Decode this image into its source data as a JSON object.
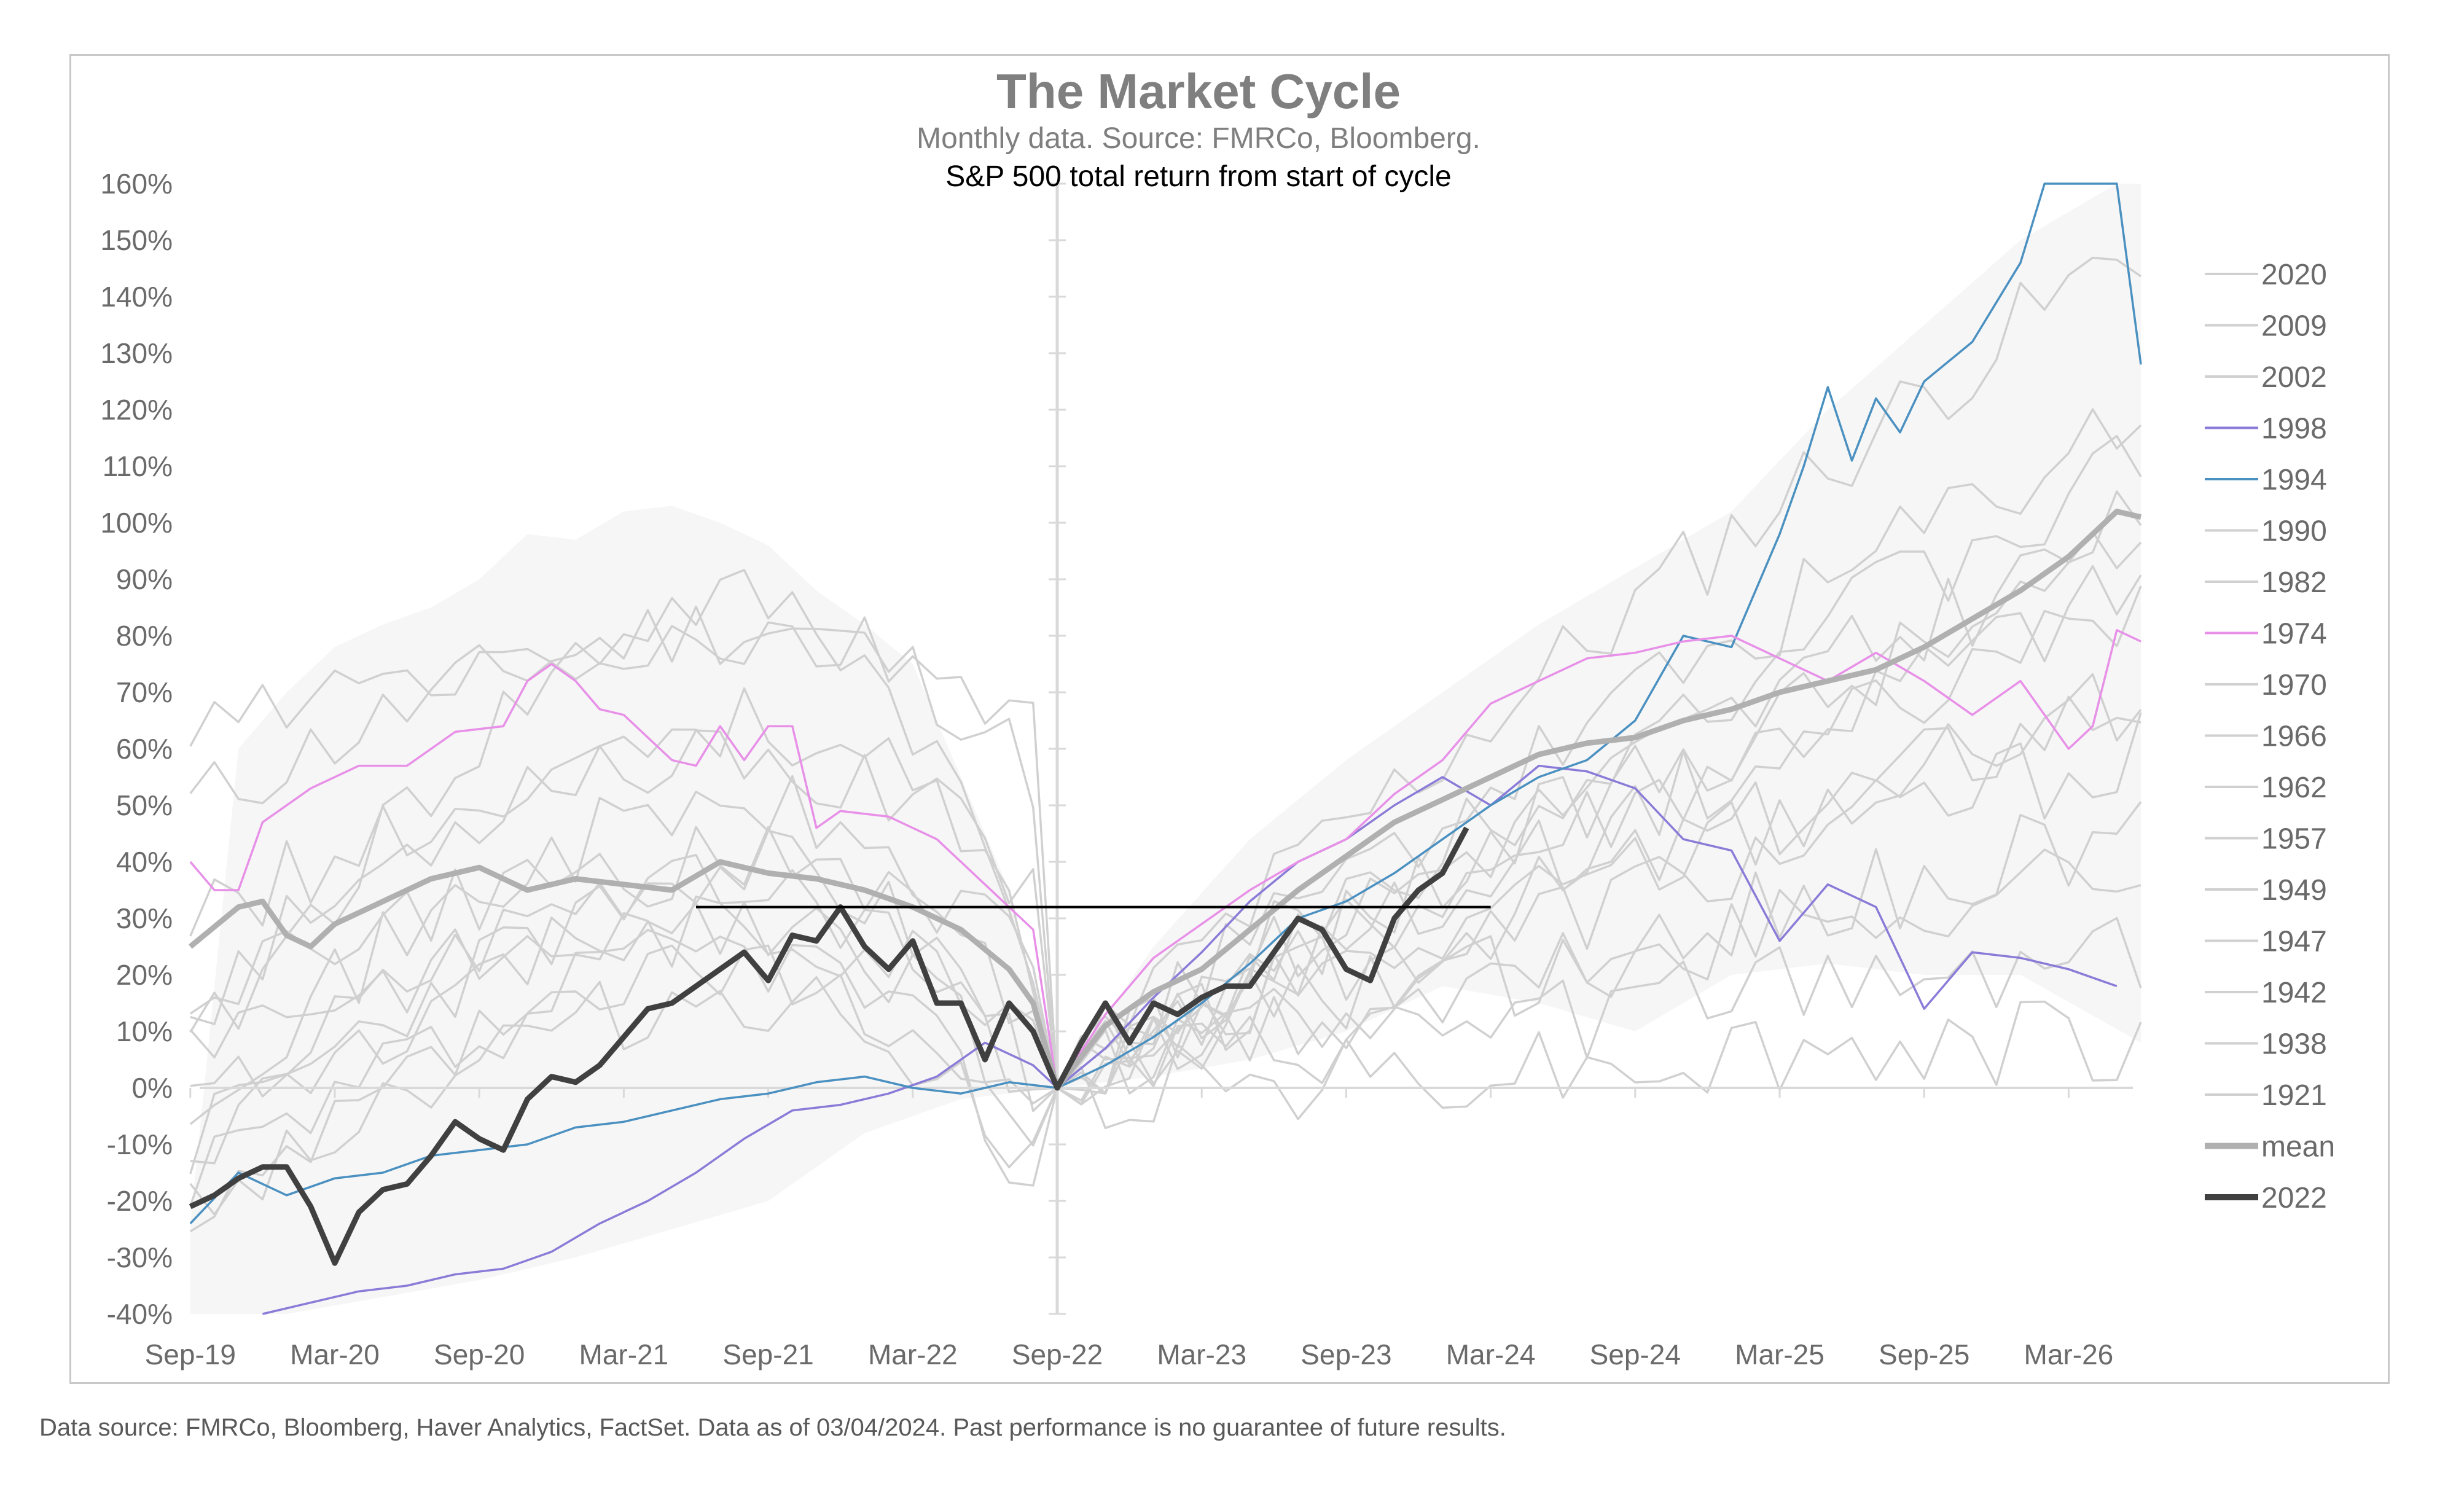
{
  "chart_data": {
    "type": "line",
    "title": "The Market Cycle",
    "subtitle": "Monthly data.  Source: FMRCo, Bloomberg.",
    "ylabel": "S&P 500 total return from start of cycle",
    "ylim": [
      -40,
      160
    ],
    "y_ticks": [
      "160%",
      "150%",
      "140%",
      "130%",
      "120%",
      "110%",
      "100%",
      "90%",
      "80%",
      "70%",
      "60%",
      "50%",
      "40%",
      "30%",
      "20%",
      "10%",
      "0%",
      "-10%",
      "-20%",
      "-30%",
      "-40%"
    ],
    "x_ticks": [
      "Sep-19",
      "Mar-20",
      "Sep-20",
      "Mar-21",
      "Sep-21",
      "Mar-22",
      "Sep-22",
      "Mar-23",
      "Sep-23",
      "Mar-24",
      "Sep-24",
      "Mar-25",
      "Sep-25",
      "Mar-26"
    ],
    "x_range_months": [
      -36,
      45
    ],
    "reference_line": {
      "y": 32,
      "x": [
        -15,
        18
      ]
    },
    "legend_position": "right",
    "series": [
      {
        "name": "2020",
        "color": "#d0d0d0",
        "kind": "bg"
      },
      {
        "name": "2009",
        "color": "#d0d0d0",
        "kind": "bg"
      },
      {
        "name": "2002",
        "color": "#d0d0d0",
        "kind": "bg"
      },
      {
        "name": "1998",
        "color": "#8b7bd8",
        "kind": "bg",
        "points": [
          [
            -33,
            -40
          ],
          [
            -31,
            -38
          ],
          [
            -29,
            -36
          ],
          [
            -27,
            -35
          ],
          [
            -25,
            -33
          ],
          [
            -23,
            -32
          ],
          [
            -21,
            -29
          ],
          [
            -19,
            -24
          ],
          [
            -17,
            -20
          ],
          [
            -15,
            -15
          ],
          [
            -13,
            -9
          ],
          [
            -11,
            -4
          ],
          [
            -9,
            -3
          ],
          [
            -7,
            -1
          ],
          [
            -5,
            2
          ],
          [
            -3,
            8
          ],
          [
            -1,
            4
          ],
          [
            0,
            0
          ],
          [
            2,
            7
          ],
          [
            4,
            16
          ],
          [
            6,
            24
          ],
          [
            8,
            33
          ],
          [
            10,
            40
          ],
          [
            12,
            44
          ],
          [
            14,
            50
          ],
          [
            16,
            55
          ],
          [
            18,
            50
          ],
          [
            20,
            57
          ],
          [
            22,
            56
          ],
          [
            24,
            53
          ],
          [
            26,
            44
          ],
          [
            28,
            42
          ],
          [
            30,
            26
          ],
          [
            32,
            36
          ],
          [
            34,
            32
          ],
          [
            36,
            14
          ],
          [
            38,
            24
          ],
          [
            40,
            23
          ],
          [
            42,
            21
          ],
          [
            44,
            18
          ]
        ]
      },
      {
        "name": "1994",
        "color": "#4a90c0",
        "kind": "bg",
        "points": [
          [
            -36,
            -24
          ],
          [
            -34,
            -15
          ],
          [
            -32,
            -19
          ],
          [
            -30,
            -16
          ],
          [
            -28,
            -15
          ],
          [
            -26,
            -12
          ],
          [
            -24,
            -11
          ],
          [
            -22,
            -10
          ],
          [
            -20,
            -7
          ],
          [
            -18,
            -6
          ],
          [
            -16,
            -4
          ],
          [
            -14,
            -2
          ],
          [
            -12,
            -1
          ],
          [
            -10,
            1
          ],
          [
            -8,
            2
          ],
          [
            -6,
            0
          ],
          [
            -4,
            -1
          ],
          [
            -2,
            1
          ],
          [
            0,
            0
          ],
          [
            2,
            4
          ],
          [
            4,
            9
          ],
          [
            6,
            15
          ],
          [
            8,
            22
          ],
          [
            10,
            30
          ],
          [
            12,
            33
          ],
          [
            14,
            38
          ],
          [
            16,
            44
          ],
          [
            18,
            50
          ],
          [
            20,
            55
          ],
          [
            22,
            58
          ],
          [
            24,
            65
          ],
          [
            26,
            80
          ],
          [
            28,
            78
          ],
          [
            30,
            98
          ],
          [
            31,
            110
          ],
          [
            32,
            124
          ],
          [
            33,
            111
          ],
          [
            34,
            122
          ],
          [
            35,
            116
          ],
          [
            36,
            125
          ],
          [
            38,
            132
          ],
          [
            40,
            146
          ],
          [
            41,
            160
          ],
          [
            42,
            161
          ],
          [
            43,
            160
          ],
          [
            44,
            160
          ],
          [
            45,
            128
          ]
        ]
      },
      {
        "name": "1990",
        "color": "#d0d0d0",
        "kind": "bg"
      },
      {
        "name": "1982",
        "color": "#d0d0d0",
        "kind": "bg"
      },
      {
        "name": "1974",
        "color": "#e890e8",
        "kind": "bg",
        "points": [
          [
            -36,
            40
          ],
          [
            -35,
            35
          ],
          [
            -34,
            35
          ],
          [
            -33,
            47
          ],
          [
            -31,
            53
          ],
          [
            -29,
            57
          ],
          [
            -27,
            57
          ],
          [
            -25,
            63
          ],
          [
            -23,
            64
          ],
          [
            -22,
            72
          ],
          [
            -21,
            75
          ],
          [
            -20,
            72
          ],
          [
            -19,
            67
          ],
          [
            -18,
            66
          ],
          [
            -17,
            62
          ],
          [
            -16,
            58
          ],
          [
            -15,
            57
          ],
          [
            -14,
            64
          ],
          [
            -13,
            58
          ],
          [
            -12,
            64
          ],
          [
            -11,
            64
          ],
          [
            -10,
            46
          ],
          [
            -9,
            49
          ],
          [
            -7,
            48
          ],
          [
            -5,
            44
          ],
          [
            -3,
            36
          ],
          [
            -1,
            28
          ],
          [
            0,
            0
          ],
          [
            2,
            13
          ],
          [
            4,
            23
          ],
          [
            6,
            29
          ],
          [
            8,
            35
          ],
          [
            10,
            40
          ],
          [
            12,
            44
          ],
          [
            14,
            52
          ],
          [
            16,
            58
          ],
          [
            18,
            68
          ],
          [
            20,
            72
          ],
          [
            22,
            76
          ],
          [
            24,
            77
          ],
          [
            26,
            79
          ],
          [
            28,
            80
          ],
          [
            30,
            76
          ],
          [
            32,
            72
          ],
          [
            34,
            77
          ],
          [
            36,
            72
          ],
          [
            38,
            66
          ],
          [
            40,
            72
          ],
          [
            42,
            60
          ],
          [
            43,
            64
          ],
          [
            44,
            81
          ],
          [
            45,
            79
          ]
        ]
      },
      {
        "name": "1970",
        "color": "#d0d0d0",
        "kind": "bg"
      },
      {
        "name": "1966",
        "color": "#d0d0d0",
        "kind": "bg"
      },
      {
        "name": "1962",
        "color": "#d0d0d0",
        "kind": "bg"
      },
      {
        "name": "1957",
        "color": "#d0d0d0",
        "kind": "bg"
      },
      {
        "name": "1949",
        "color": "#d0d0d0",
        "kind": "bg"
      },
      {
        "name": "1947",
        "color": "#d0d0d0",
        "kind": "bg"
      },
      {
        "name": "1942",
        "color": "#d0d0d0",
        "kind": "bg"
      },
      {
        "name": "1938",
        "color": "#d0d0d0",
        "kind": "bg"
      },
      {
        "name": "1921",
        "color": "#d0d0d0",
        "kind": "bg"
      },
      {
        "name": "mean",
        "color": "#b0b0b0",
        "kind": "mean",
        "points": [
          [
            -36,
            25
          ],
          [
            -34,
            32
          ],
          [
            -33,
            33
          ],
          [
            -32,
            27
          ],
          [
            -31,
            25
          ],
          [
            -30,
            29
          ],
          [
            -28,
            33
          ],
          [
            -26,
            37
          ],
          [
            -24,
            39
          ],
          [
            -23,
            37
          ],
          [
            -22,
            35
          ],
          [
            -20,
            37
          ],
          [
            -18,
            36
          ],
          [
            -16,
            35
          ],
          [
            -14,
            40
          ],
          [
            -12,
            38
          ],
          [
            -10,
            37
          ],
          [
            -8,
            35
          ],
          [
            -6,
            32
          ],
          [
            -4,
            28
          ],
          [
            -2,
            21
          ],
          [
            -1,
            15
          ],
          [
            0,
            0
          ],
          [
            2,
            11
          ],
          [
            4,
            17
          ],
          [
            6,
            21
          ],
          [
            8,
            28
          ],
          [
            10,
            35
          ],
          [
            12,
            41
          ],
          [
            14,
            47
          ],
          [
            16,
            51
          ],
          [
            18,
            55
          ],
          [
            20,
            59
          ],
          [
            22,
            61
          ],
          [
            24,
            62
          ],
          [
            26,
            65
          ],
          [
            28,
            67
          ],
          [
            30,
            70
          ],
          [
            32,
            72
          ],
          [
            34,
            74
          ],
          [
            36,
            78
          ],
          [
            38,
            83
          ],
          [
            40,
            88
          ],
          [
            42,
            94
          ],
          [
            44,
            102
          ],
          [
            45,
            101
          ]
        ]
      },
      {
        "name": "2022",
        "color": "#404040",
        "kind": "current",
        "points": [
          [
            -36,
            -21
          ],
          [
            -35,
            -19
          ],
          [
            -34,
            -16
          ],
          [
            -33,
            -14
          ],
          [
            -32,
            -14
          ],
          [
            -31,
            -21
          ],
          [
            -30,
            -31
          ],
          [
            -29,
            -22
          ],
          [
            -28,
            -18
          ],
          [
            -27,
            -17
          ],
          [
            -26,
            -12
          ],
          [
            -25,
            -6
          ],
          [
            -24,
            -9
          ],
          [
            -23,
            -11
          ],
          [
            -22,
            -2
          ],
          [
            -21,
            2
          ],
          [
            -20,
            1
          ],
          [
            -19,
            4
          ],
          [
            -18,
            9
          ],
          [
            -17,
            14
          ],
          [
            -16,
            15
          ],
          [
            -15,
            18
          ],
          [
            -14,
            21
          ],
          [
            -13,
            24
          ],
          [
            -12,
            19
          ],
          [
            -11,
            27
          ],
          [
            -10,
            26
          ],
          [
            -9,
            32
          ],
          [
            -8,
            25
          ],
          [
            -7,
            21
          ],
          [
            -6,
            26
          ],
          [
            -5,
            15
          ],
          [
            -4,
            15
          ],
          [
            -3,
            5
          ],
          [
            -2,
            15
          ],
          [
            -1,
            10
          ],
          [
            0,
            0
          ],
          [
            1,
            8
          ],
          [
            2,
            15
          ],
          [
            3,
            8
          ],
          [
            4,
            15
          ],
          [
            5,
            13
          ],
          [
            6,
            16
          ],
          [
            7,
            18
          ],
          [
            8,
            18
          ],
          [
            9,
            24
          ],
          [
            10,
            30
          ],
          [
            11,
            28
          ],
          [
            12,
            21
          ],
          [
            13,
            19
          ],
          [
            14,
            30
          ],
          [
            15,
            35
          ],
          [
            16,
            38
          ],
          [
            17,
            46
          ]
        ]
      }
    ]
  },
  "footnote": "Data source: FMRCo, Bloomberg, Haver Analytics, FactSet. Data as of 03/04/2024. Past performance is no guarantee of future results."
}
